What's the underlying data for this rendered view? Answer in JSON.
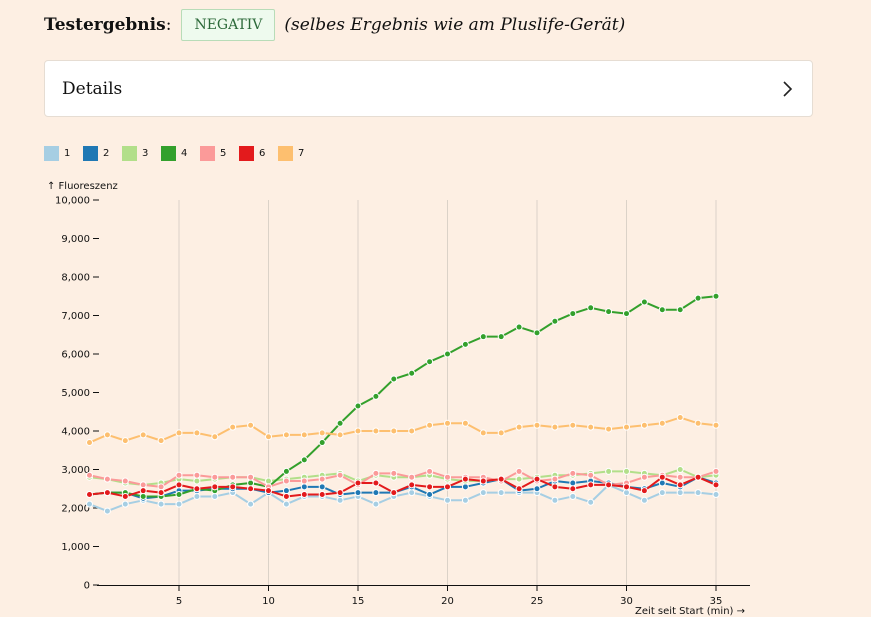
{
  "result": {
    "label": "Testergebnis",
    "colon": ":",
    "value": "NEGATIV",
    "note": "(selbes Ergebnis wie am Pluslife-Gerät)"
  },
  "details": {
    "title": "Details",
    "chevron_icon": "chevron-right-icon"
  },
  "chart_data": {
    "type": "line",
    "title": "",
    "ylabel": "↑ Fluoreszenz",
    "xlabel": "Zeit seit Start (min) →",
    "xlim": [
      0,
      36.5
    ],
    "ylim": [
      0,
      10000
    ],
    "x_ticks": [
      5,
      10,
      15,
      20,
      25,
      30,
      35
    ],
    "y_ticks": [
      0,
      1000,
      2000,
      3000,
      4000,
      5000,
      6000,
      7000,
      8000,
      9000,
      10000
    ],
    "y_tick_labels": [
      "0",
      "1,000",
      "2,000",
      "3,000",
      "4,000",
      "5,000",
      "6,000",
      "7,000",
      "8,000",
      "9,000",
      "10,000"
    ],
    "grid": "vertical",
    "legend_position": "top-left",
    "x": [
      0,
      1,
      2,
      3,
      4,
      5,
      6,
      7,
      8,
      9,
      10,
      11,
      12,
      13,
      14,
      15,
      16,
      17,
      18,
      19,
      20,
      21,
      22,
      23,
      24,
      25,
      26,
      27,
      28,
      29,
      30,
      31,
      32,
      33,
      34,
      35
    ],
    "series": [
      {
        "name": "1",
        "color": "#a6cee3",
        "values": [
          2100,
          1920,
          2100,
          2200,
          2100,
          2100,
          2300,
          2300,
          2400,
          2100,
          2400,
          2100,
          2300,
          2300,
          2200,
          2300,
          2100,
          2300,
          2400,
          2300,
          2200,
          2200,
          2400,
          2400,
          2400,
          2400,
          2200,
          2300,
          2150,
          2600,
          2400,
          2200,
          2400,
          2400,
          2400,
          2350
        ]
      },
      {
        "name": "2",
        "color": "#1f78b4",
        "values": [
          2350,
          2400,
          2400,
          2250,
          2300,
          2450,
          2450,
          2500,
          2500,
          2500,
          2400,
          2450,
          2550,
          2550,
          2350,
          2400,
          2400,
          2400,
          2550,
          2350,
          2550,
          2550,
          2650,
          2750,
          2450,
          2500,
          2700,
          2650,
          2700,
          2650,
          2550,
          2500,
          2650,
          2550,
          2800,
          2650
        ]
      },
      {
        "name": "3",
        "color": "#b2df8a",
        "values": [
          2800,
          2750,
          2650,
          2600,
          2650,
          2750,
          2700,
          2750,
          2800,
          2800,
          2700,
          2750,
          2800,
          2850,
          2900,
          2700,
          2850,
          2800,
          2800,
          2850,
          2750,
          2700,
          2700,
          2750,
          2750,
          2800,
          2850,
          2850,
          2900,
          2950,
          2950,
          2900,
          2850,
          3000,
          2800,
          2850
        ]
      },
      {
        "name": "4",
        "color": "#33a02c",
        "values": [
          2350,
          2400,
          2400,
          2300,
          2300,
          2350,
          2500,
          2450,
          2600,
          2650,
          2550,
          2950,
          3250,
          3700,
          4200,
          4650,
          4900,
          5350,
          5500,
          5800,
          6000,
          6250,
          6450,
          6450,
          6700,
          6550,
          6850,
          7050,
          7200,
          7100,
          7050,
          7350,
          7150,
          7150,
          7450,
          7500
        ]
      },
      {
        "name": "5",
        "color": "#fb9a99",
        "values": [
          2850,
          2750,
          2700,
          2600,
          2550,
          2850,
          2850,
          2800,
          2800,
          2800,
          2550,
          2700,
          2700,
          2750,
          2850,
          2600,
          2900,
          2900,
          2800,
          2950,
          2800,
          2800,
          2800,
          2700,
          2950,
          2700,
          2750,
          2900,
          2850,
          2600,
          2650,
          2800,
          2850,
          2800,
          2800,
          2950
        ]
      },
      {
        "name": "6",
        "color": "#e31a1c",
        "values": [
          2350,
          2400,
          2300,
          2450,
          2400,
          2600,
          2500,
          2550,
          2550,
          2500,
          2450,
          2300,
          2350,
          2350,
          2400,
          2650,
          2650,
          2400,
          2600,
          2550,
          2550,
          2750,
          2700,
          2750,
          2500,
          2750,
          2550,
          2500,
          2600,
          2600,
          2550,
          2450,
          2800,
          2600,
          2800,
          2600
        ]
      },
      {
        "name": "7",
        "color": "#fdbf6f",
        "values": [
          3700,
          3900,
          3750,
          3900,
          3750,
          3950,
          3950,
          3850,
          4100,
          4150,
          3850,
          3900,
          3900,
          3950,
          3900,
          4000,
          4000,
          4000,
          4000,
          4150,
          4200,
          4200,
          3950,
          3950,
          4100,
          4150,
          4100,
          4150,
          4100,
          4050,
          4100,
          4150,
          4200,
          4350,
          4200,
          4150
        ]
      }
    ]
  }
}
